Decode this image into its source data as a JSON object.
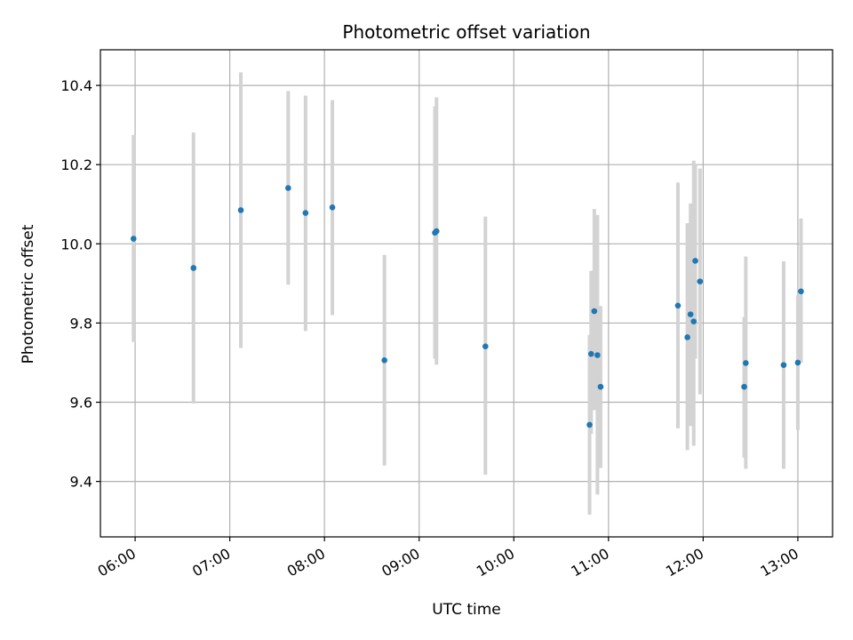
{
  "chart_data": {
    "type": "scatter",
    "title": "Photometric offset variation",
    "xlabel": "UTC time",
    "ylabel": "Photometric offset",
    "xlim": [
      "05:38",
      "13:22"
    ],
    "ylim": [
      9.26,
      10.49
    ],
    "xticks": [
      "06:00",
      "07:00",
      "08:00",
      "09:00",
      "10:00",
      "11:00",
      "12:00",
      "13:00"
    ],
    "yticks": [
      9.4,
      9.6,
      9.8,
      10.0,
      10.2,
      10.4
    ],
    "ytick_labels": [
      "9.4",
      "9.6",
      "9.8",
      "10.0",
      "10.2",
      "10.4"
    ],
    "grid": true,
    "point_color": "#1f77b4",
    "errorbar_color": "#d3d3d3",
    "points": [
      {
        "x": "05:59",
        "y": 10.013,
        "ylo": 9.752,
        "yhi": 10.275
      },
      {
        "x": "06:37",
        "y": 9.939,
        "ylo": 9.597,
        "yhi": 10.281
      },
      {
        "x": "07:07",
        "y": 10.085,
        "ylo": 9.737,
        "yhi": 10.433
      },
      {
        "x": "07:37",
        "y": 10.141,
        "ylo": 9.897,
        "yhi": 10.386
      },
      {
        "x": "07:48",
        "y": 10.078,
        "ylo": 9.78,
        "yhi": 10.374
      },
      {
        "x": "08:05",
        "y": 10.092,
        "ylo": 9.82,
        "yhi": 10.363
      },
      {
        "x": "08:38",
        "y": 9.706,
        "ylo": 9.44,
        "yhi": 9.972
      },
      {
        "x": "09:10",
        "y": 10.028,
        "ylo": 9.71,
        "yhi": 10.347
      },
      {
        "x": "09:11",
        "y": 10.032,
        "ylo": 9.695,
        "yhi": 10.37
      },
      {
        "x": "09:42",
        "y": 9.741,
        "ylo": 9.417,
        "yhi": 10.069
      },
      {
        "x": "10:48",
        "y": 9.543,
        "ylo": 9.316,
        "yhi": 9.77
      },
      {
        "x": "10:49",
        "y": 9.722,
        "ylo": 9.52,
        "yhi": 9.932
      },
      {
        "x": "10:51",
        "y": 9.83,
        "ylo": 9.58,
        "yhi": 10.088
      },
      {
        "x": "10:53",
        "y": 9.719,
        "ylo": 9.367,
        "yhi": 10.073
      },
      {
        "x": "10:55",
        "y": 9.639,
        "ylo": 9.434,
        "yhi": 9.843
      },
      {
        "x": "11:44",
        "y": 9.844,
        "ylo": 9.534,
        "yhi": 10.155
      },
      {
        "x": "11:50",
        "y": 9.764,
        "ylo": 9.479,
        "yhi": 10.052
      },
      {
        "x": "11:52",
        "y": 9.822,
        "ylo": 9.54,
        "yhi": 10.102
      },
      {
        "x": "11:54",
        "y": 9.804,
        "ylo": 9.49,
        "yhi": 10.21
      },
      {
        "x": "11:55",
        "y": 9.957,
        "ylo": 9.71,
        "yhi": 10.2
      },
      {
        "x": "11:58",
        "y": 9.905,
        "ylo": 9.62,
        "yhi": 10.19
      },
      {
        "x": "12:26",
        "y": 9.639,
        "ylo": 9.46,
        "yhi": 9.815
      },
      {
        "x": "12:27",
        "y": 9.699,
        "ylo": 9.432,
        "yhi": 9.968
      },
      {
        "x": "12:51",
        "y": 9.694,
        "ylo": 9.432,
        "yhi": 9.956
      },
      {
        "x": "13:00",
        "y": 9.7,
        "ylo": 9.53,
        "yhi": 9.87
      },
      {
        "x": "13:02",
        "y": 9.88,
        "ylo": 9.7,
        "yhi": 10.064
      }
    ]
  }
}
